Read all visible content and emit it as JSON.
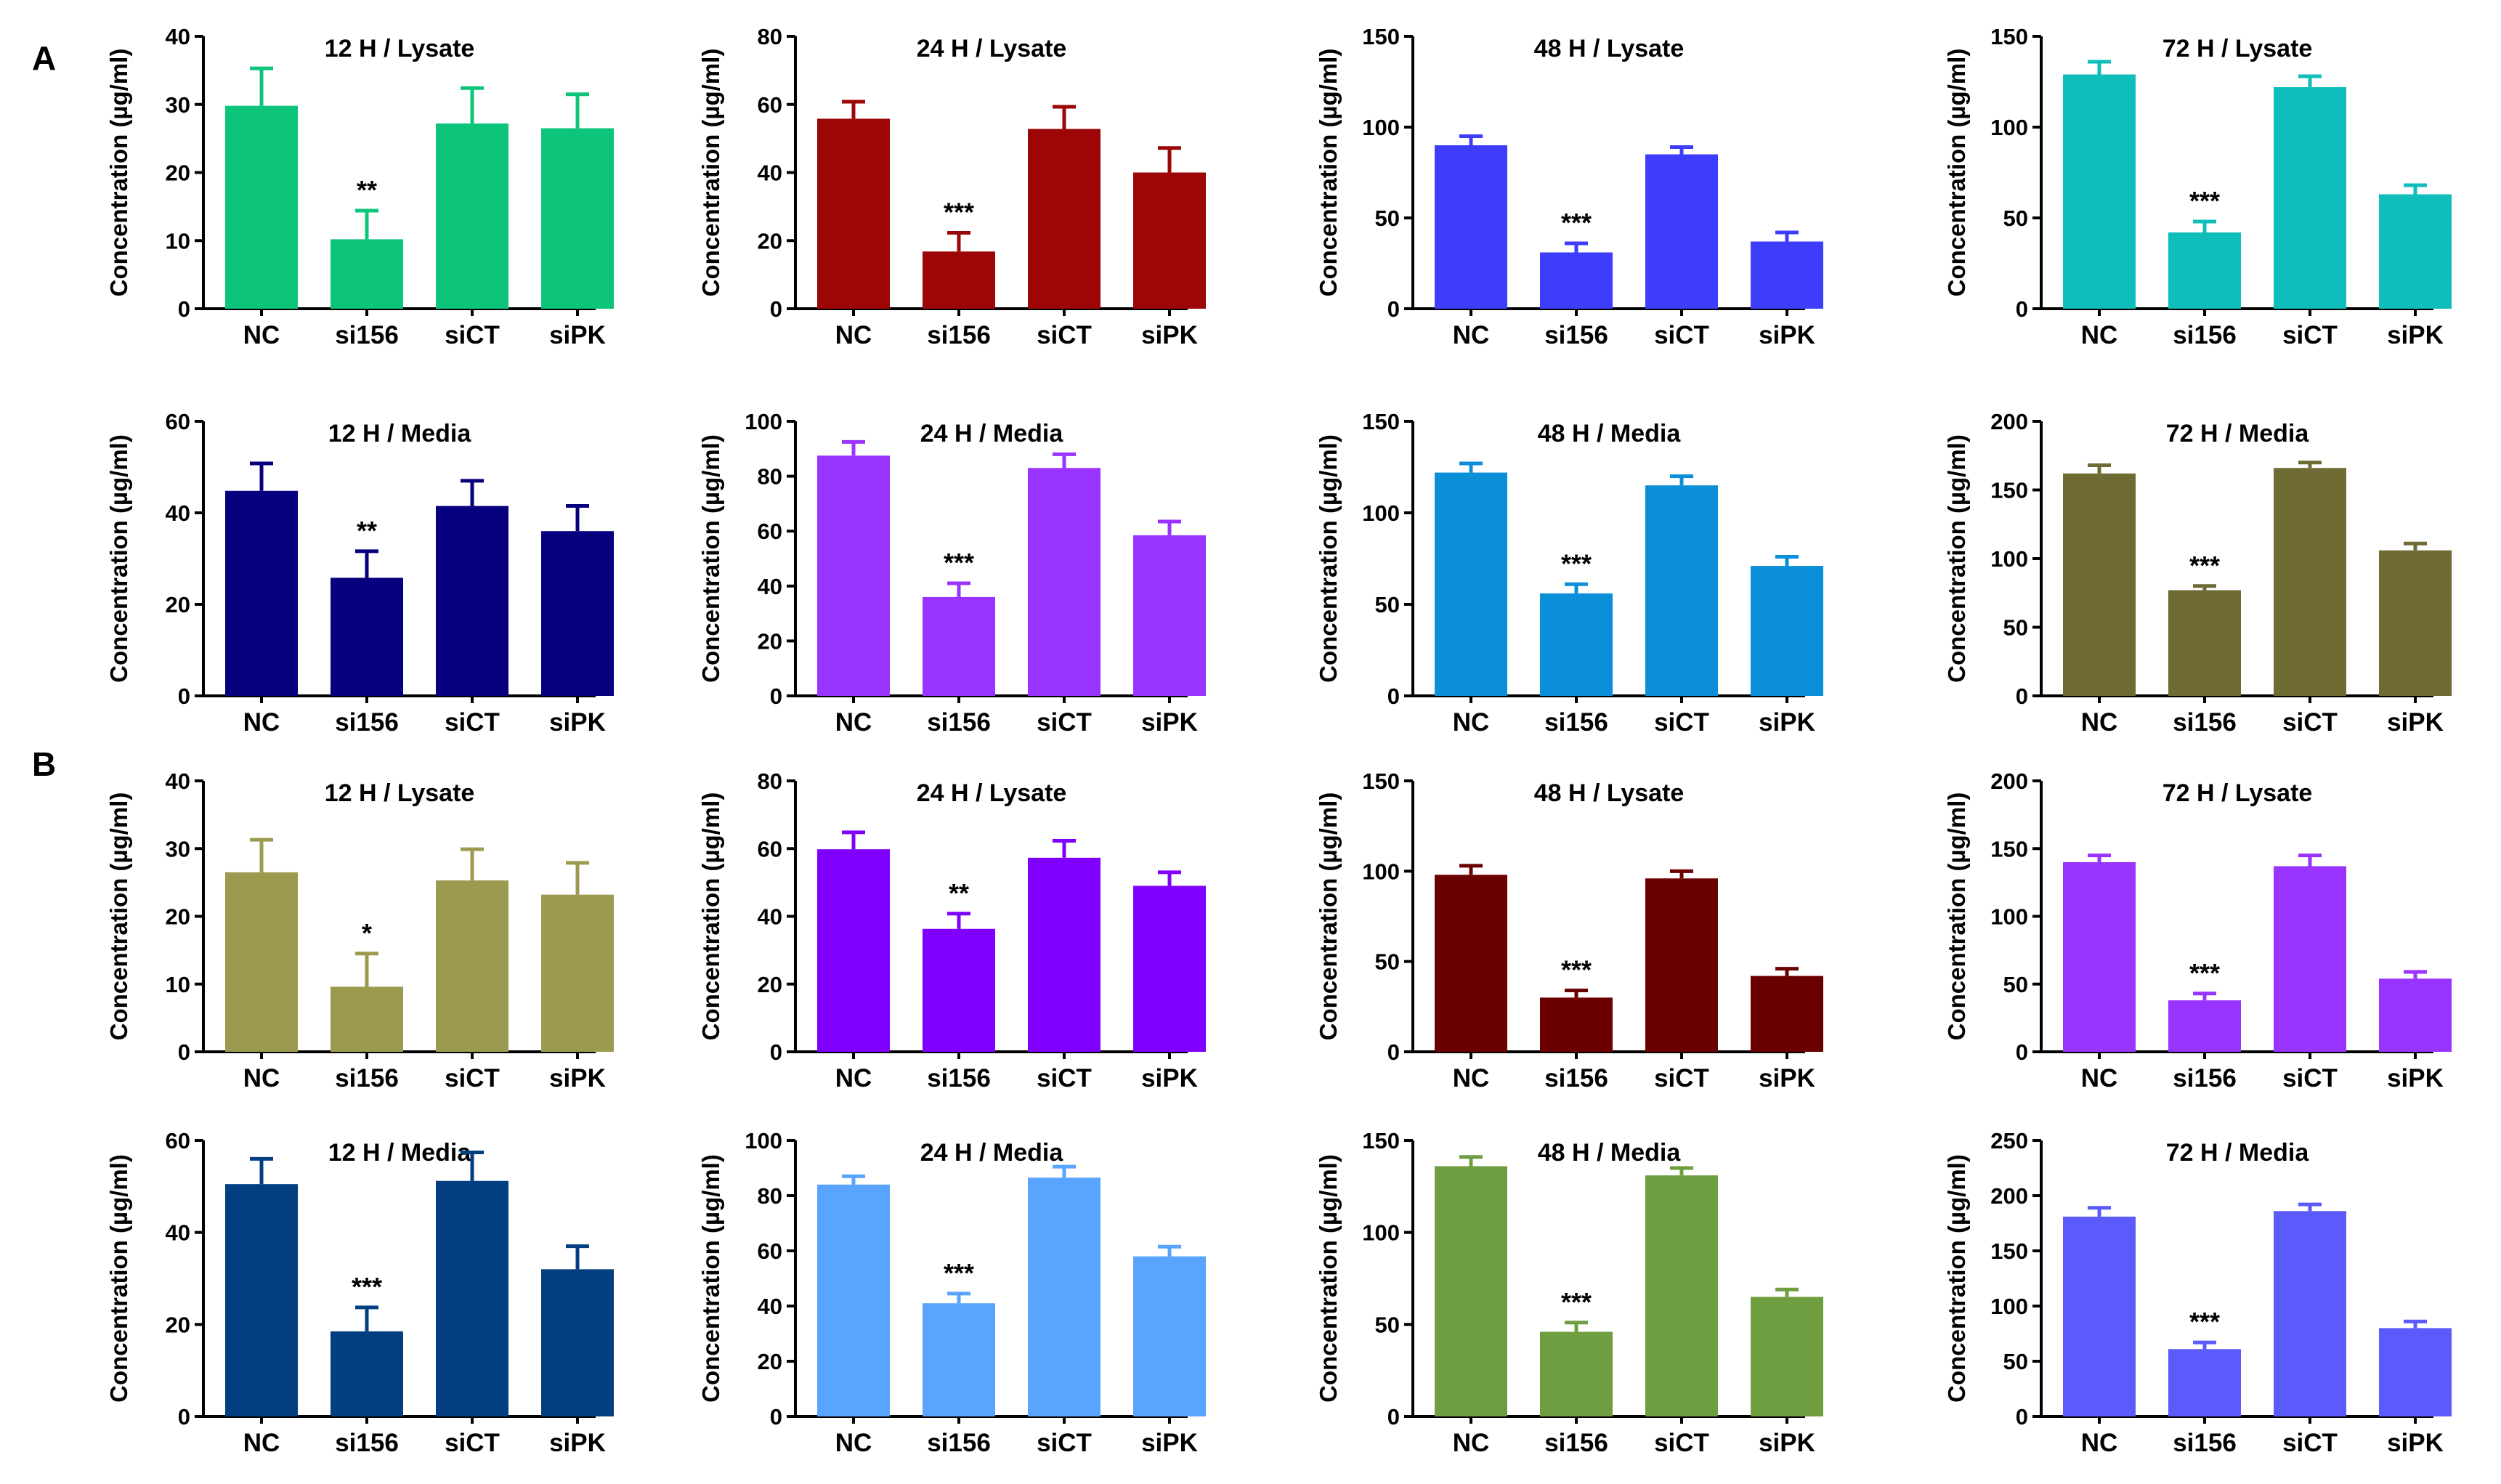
{
  "panel_labels": [
    "A",
    "B"
  ],
  "chart_data": [
    {
      "type": "bar",
      "title": "12 H / Lysate",
      "ylabel": "Concentration (µg/ml)",
      "ylim": [
        0,
        40
      ],
      "yticks": [
        0,
        10,
        20,
        30,
        40
      ],
      "categories": [
        "NC",
        "si156",
        "siCT",
        "siPK"
      ],
      "values": [
        29.8,
        10.2,
        27.2,
        26.5
      ],
      "errors": [
        5.5,
        4.2,
        5.2,
        5.0
      ],
      "significance": [
        "",
        "**",
        "",
        ""
      ],
      "color": "#0CC57A"
    },
    {
      "type": "bar",
      "title": "24 H / Lysate",
      "ylabel": "Concentration (µg/ml)",
      "ylim": [
        0,
        80
      ],
      "yticks": [
        0,
        20,
        40,
        60,
        80
      ],
      "categories": [
        "NC",
        "si156",
        "siCT",
        "siPK"
      ],
      "values": [
        55.8,
        16.8,
        52.8,
        40.0
      ],
      "errors": [
        5.0,
        5.5,
        6.5,
        7.2
      ],
      "significance": [
        "",
        "***",
        "",
        ""
      ],
      "color": "#9C0606"
    },
    {
      "type": "bar",
      "title": "48 H / Lysate",
      "ylabel": "Concentration (µg/ml)",
      "ylim": [
        0,
        150
      ],
      "yticks": [
        0,
        50,
        100,
        150
      ],
      "categories": [
        "NC",
        "si156",
        "siCT",
        "siPK"
      ],
      "values": [
        90,
        31,
        85,
        37
      ],
      "errors": [
        5,
        5,
        4,
        5
      ],
      "significance": [
        "",
        "***",
        "",
        ""
      ],
      "color": "#3D3DFB"
    },
    {
      "type": "bar",
      "title": "72 H / Lysate",
      "ylabel": "Concentration (µg/ml)",
      "ylim": [
        0,
        150
      ],
      "yticks": [
        0,
        50,
        100,
        150
      ],
      "categories": [
        "NC",
        "si156",
        "siCT",
        "siPK"
      ],
      "values": [
        129,
        42,
        122,
        63
      ],
      "errors": [
        7,
        6,
        6,
        5
      ],
      "significance": [
        "",
        "***",
        "",
        ""
      ],
      "color": "#0FBEBA"
    },
    {
      "type": "bar",
      "title": "12 H / Media",
      "ylabel": "Concentration (µg/ml)",
      "ylim": [
        0,
        60
      ],
      "yticks": [
        0,
        20,
        40,
        60
      ],
      "categories": [
        "NC",
        "si156",
        "siCT",
        "siPK"
      ],
      "values": [
        44.8,
        25.8,
        41.5,
        36.0
      ],
      "errors": [
        6.0,
        5.8,
        5.5,
        5.5
      ],
      "significance": [
        "",
        "**",
        "",
        ""
      ],
      "color": "#06007E"
    },
    {
      "type": "bar",
      "title": "24 H / Media",
      "ylabel": "Concentration (µg/ml)",
      "ylim": [
        0,
        100
      ],
      "yticks": [
        0,
        20,
        40,
        60,
        80,
        100
      ],
      "categories": [
        "NC",
        "si156",
        "siCT",
        "siPK"
      ],
      "values": [
        87.5,
        36,
        83,
        58.5
      ],
      "errors": [
        5,
        5,
        5,
        5
      ],
      "significance": [
        "",
        "***",
        "",
        ""
      ],
      "color": "#9933FF"
    },
    {
      "type": "bar",
      "title": "48 H / Media",
      "ylabel": "Concentration (µg/ml)",
      "ylim": [
        0,
        150
      ],
      "yticks": [
        0,
        50,
        100,
        150
      ],
      "categories": [
        "NC",
        "si156",
        "siCT",
        "siPK"
      ],
      "values": [
        122,
        56,
        115,
        71
      ],
      "errors": [
        5,
        5,
        5,
        5
      ],
      "significance": [
        "",
        "***",
        "",
        ""
      ],
      "color": "#0A8FD8"
    },
    {
      "type": "bar",
      "title": "72 H / Media",
      "ylabel": "Concentration (µg/ml)",
      "ylim": [
        0,
        200
      ],
      "yticks": [
        0,
        50,
        100,
        150,
        200
      ],
      "categories": [
        "NC",
        "si156",
        "siCT",
        "siPK"
      ],
      "values": [
        162,
        77,
        166,
        106
      ],
      "errors": [
        6,
        3,
        4,
        5
      ],
      "significance": [
        "",
        "***",
        "",
        ""
      ],
      "color": "#6E6B34"
    },
    {
      "type": "bar",
      "title": "12 H / Lysate",
      "ylabel": "Concentration (µg/ml)",
      "ylim": [
        0,
        40
      ],
      "yticks": [
        0,
        10,
        20,
        30,
        40
      ],
      "categories": [
        "NC",
        "si156",
        "siCT",
        "siPK"
      ],
      "values": [
        26.5,
        9.6,
        25.3,
        23.2
      ],
      "errors": [
        4.8,
        4.9,
        4.6,
        4.7
      ],
      "significance": [
        "",
        "*",
        "",
        ""
      ],
      "color": "#9C9A4E"
    },
    {
      "type": "bar",
      "title": "24 H / Lysate",
      "ylabel": "Concentration (µg/ml)",
      "ylim": [
        0,
        80
      ],
      "yticks": [
        0,
        20,
        40,
        60,
        80
      ],
      "categories": [
        "NC",
        "si156",
        "siCT",
        "siPK"
      ],
      "values": [
        59.8,
        36.3,
        57.3,
        49.0
      ],
      "errors": [
        5.0,
        4.5,
        5.0,
        4.0
      ],
      "significance": [
        "",
        "**",
        "",
        ""
      ],
      "color": "#8000FF"
    },
    {
      "type": "bar",
      "title": "48 H / Lysate",
      "ylabel": "Concentration (µg/ml)",
      "ylim": [
        0,
        150
      ],
      "yticks": [
        0,
        50,
        100,
        150
      ],
      "categories": [
        "NC",
        "si156",
        "siCT",
        "siPK"
      ],
      "values": [
        98,
        30,
        96,
        42
      ],
      "errors": [
        5,
        4,
        4,
        4
      ],
      "significance": [
        "",
        "***",
        "",
        ""
      ],
      "color": "#6B0000"
    },
    {
      "type": "bar",
      "title": "72 H / Lysate",
      "ylabel": "Concentration (µg/ml)",
      "ylim": [
        0,
        200
      ],
      "yticks": [
        0,
        50,
        100,
        150,
        200
      ],
      "categories": [
        "NC",
        "si156",
        "siCT",
        "siPK"
      ],
      "values": [
        140,
        38,
        137,
        54
      ],
      "errors": [
        5,
        5,
        8,
        5
      ],
      "significance": [
        "",
        "***",
        "",
        ""
      ],
      "color": "#9933FF"
    },
    {
      "type": "bar",
      "title": "12 H / Media",
      "ylabel": "Concentration (µg/ml)",
      "ylim": [
        0,
        60
      ],
      "yticks": [
        0,
        20,
        40,
        60
      ],
      "categories": [
        "NC",
        "si156",
        "siCT",
        "siPK"
      ],
      "values": [
        50.5,
        18.5,
        51.2,
        32.0
      ],
      "errors": [
        5.5,
        5.2,
        6.2,
        5.0
      ],
      "significance": [
        "",
        "***",
        "",
        ""
      ],
      "color": "#033F80"
    },
    {
      "type": "bar",
      "title": "24 H / Media",
      "ylabel": "Concentration (µg/ml)",
      "ylim": [
        0,
        100
      ],
      "yticks": [
        0,
        20,
        40,
        60,
        80,
        100
      ],
      "categories": [
        "NC",
        "si156",
        "siCT",
        "siPK"
      ],
      "values": [
        84,
        41,
        86.5,
        58
      ],
      "errors": [
        3,
        3.5,
        4,
        3.5
      ],
      "significance": [
        "",
        "***",
        "",
        ""
      ],
      "color": "#58A4FF"
    },
    {
      "type": "bar",
      "title": "48 H / Media",
      "ylabel": "Concentration (µg/ml)",
      "ylim": [
        0,
        150
      ],
      "yticks": [
        0,
        50,
        100,
        150
      ],
      "categories": [
        "NC",
        "si156",
        "siCT",
        "siPK"
      ],
      "values": [
        136,
        46,
        131,
        65
      ],
      "errors": [
        5,
        5,
        4,
        4
      ],
      "significance": [
        "",
        "***",
        "",
        ""
      ],
      "color": "#6E9E3F"
    },
    {
      "type": "bar",
      "title": "72 H / Media",
      "ylabel": "Concentration (µg/ml)",
      "ylim": [
        0,
        250
      ],
      "yticks": [
        0,
        50,
        100,
        150,
        200,
        250
      ],
      "categories": [
        "NC",
        "si156",
        "siCT",
        "siPK"
      ],
      "values": [
        181,
        61,
        186,
        80
      ],
      "errors": [
        8,
        6,
        6,
        6
      ],
      "significance": [
        "",
        "***",
        "",
        ""
      ],
      "color": "#5B5BFB"
    }
  ]
}
